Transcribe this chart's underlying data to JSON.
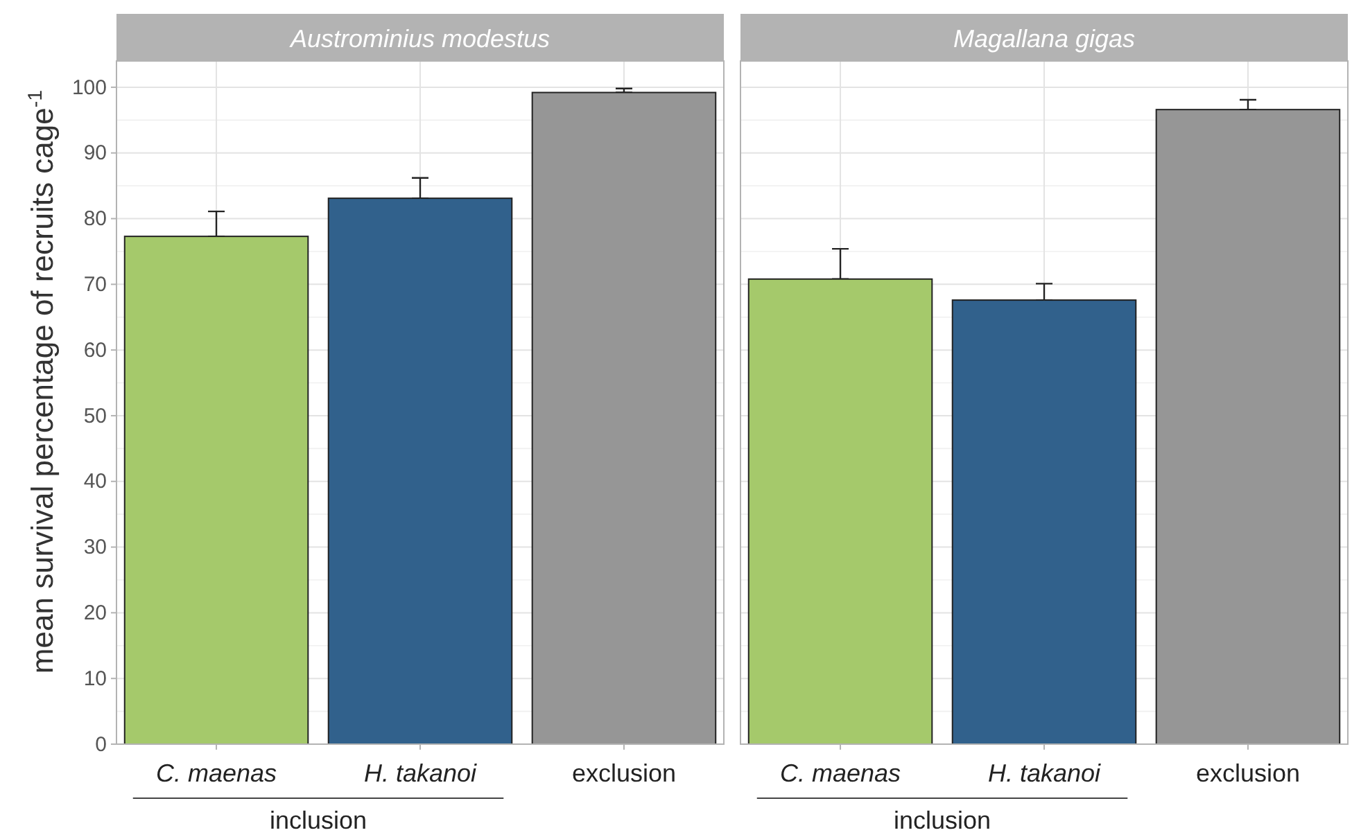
{
  "chart_data": [
    {
      "type": "bar",
      "title": "Austrominius modestus",
      "ylabel": "mean survival percentage of recruits cage$^{-1}$",
      "categories": [
        "C. maenas",
        "H. takanoi",
        "exclusion"
      ],
      "values": [
        77.3,
        83.1,
        99.2
      ],
      "colors": [
        "#a5c96b",
        "#31618c",
        "#969696"
      ],
      "errors": [
        [
          77.3,
          81.1
        ],
        [
          83.1,
          86.2
        ],
        [
          99.2,
          99.8
        ]
      ],
      "ylim": [
        0,
        104
      ],
      "yticks": [
        0,
        10,
        20,
        30,
        40,
        50,
        60,
        70,
        80,
        90,
        100
      ],
      "grid": true,
      "annotations": [
        "inclusion"
      ]
    },
    {
      "type": "bar",
      "title": "Magallana gigas",
      "categories": [
        "C. maenas",
        "H. takanoi",
        "exclusion"
      ],
      "values": [
        70.8,
        67.6,
        96.6
      ],
      "colors": [
        "#a5c96b",
        "#31618c",
        "#969696"
      ],
      "errors": [
        [
          70.8,
          75.4
        ],
        [
          67.6,
          70.1
        ],
        [
          96.6,
          98.1
        ]
      ],
      "ylim": [
        0,
        104
      ],
      "yticks": [
        0,
        10,
        20,
        30,
        40,
        50,
        60,
        70,
        80,
        90,
        100
      ],
      "grid": true,
      "tick_labels": "x",
      "annotations": [
        "inclusion"
      ]
    }
  ]
}
